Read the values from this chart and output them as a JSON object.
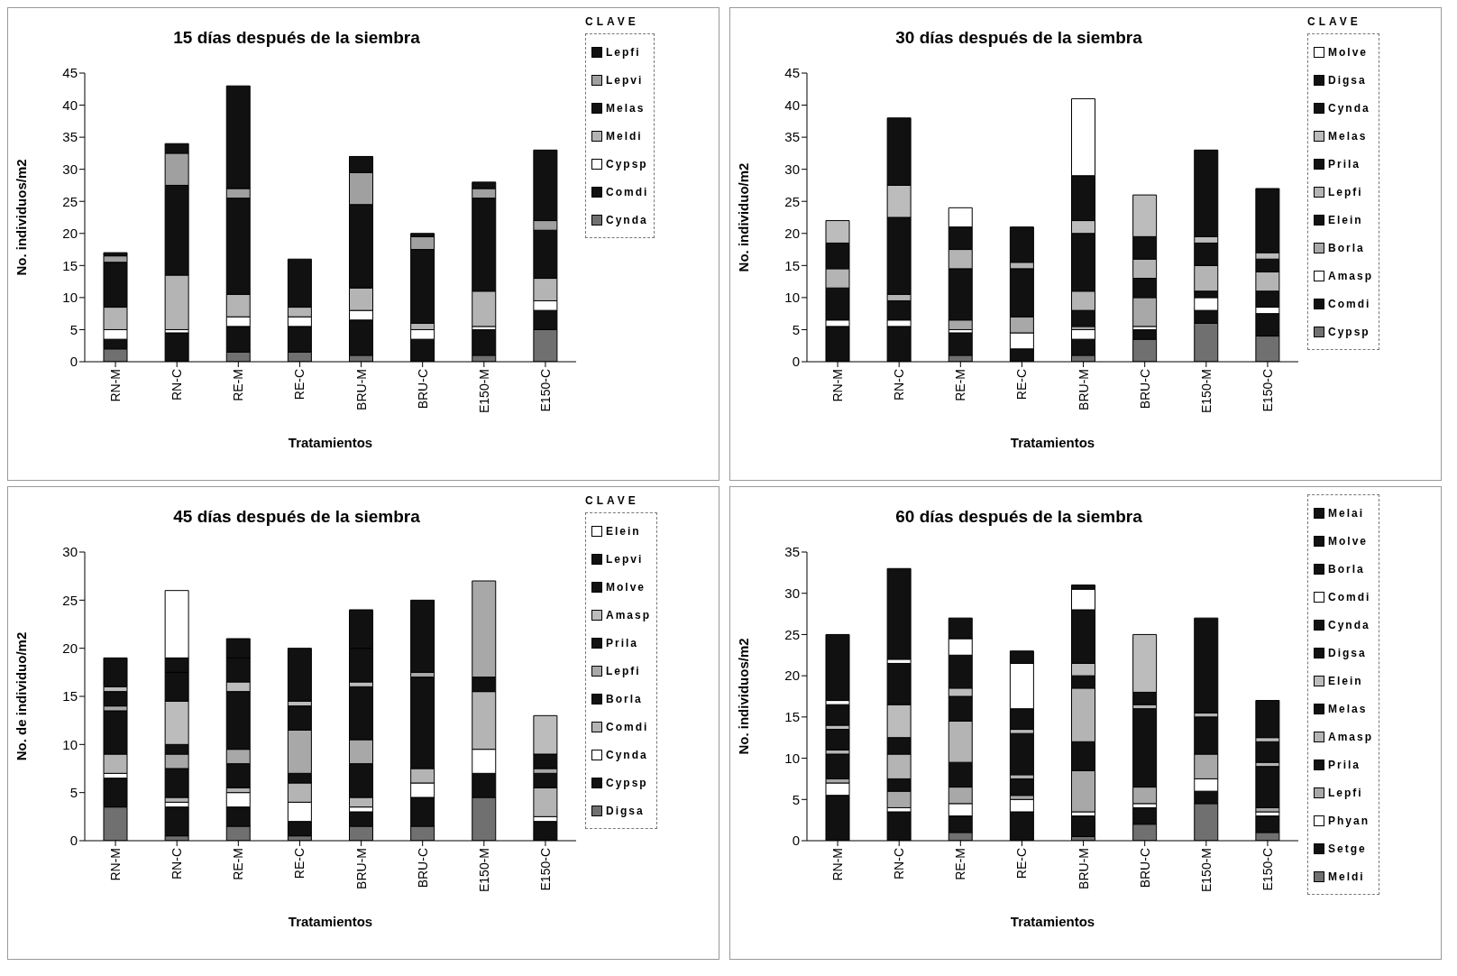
{
  "chart_data": [
    {
      "type": "bar",
      "title": "15 días después de la siembra",
      "xlabel": "Tratamientos",
      "ylabel": "No. individuos/m2",
      "legend_title": "CLAVE",
      "legend": "right",
      "stacked": true,
      "categories": [
        "RN-M",
        "RN-C",
        "RE-M",
        "RE-C",
        "BRU-M",
        "BRU-C",
        "E150-M",
        "E150-C"
      ],
      "ylim": [
        0,
        45
      ],
      "yticks": [
        0,
        5,
        10,
        15,
        20,
        25,
        30,
        35,
        40,
        45
      ],
      "series": [
        {
          "name": "Cynda",
          "color": "#707070",
          "values": [
            2,
            0,
            1.5,
            1.5,
            1,
            0,
            1,
            5
          ]
        },
        {
          "name": "Comdi",
          "color": "#111111",
          "values": [
            1.5,
            4.5,
            4,
            4,
            5.5,
            3.5,
            4,
            3
          ]
        },
        {
          "name": "Cypsp",
          "color": "#ffffff",
          "values": [
            1.5,
            0.5,
            1.5,
            1.5,
            1.5,
            1.5,
            0.5,
            1.5
          ]
        },
        {
          "name": "Meldi",
          "color": "#b4b4b4",
          "values": [
            3.5,
            8.5,
            3.5,
            1.5,
            3.5,
            1,
            5.5,
            3.5
          ]
        },
        {
          "name": "Melas",
          "color": "#111111",
          "values": [
            7,
            14,
            15,
            7.5,
            13,
            11.5,
            14.5,
            7.5
          ]
        },
        {
          "name": "Lepvi",
          "color": "#a0a0a0",
          "values": [
            1,
            5,
            1.5,
            0,
            5,
            2,
            1.5,
            1.5
          ]
        },
        {
          "name": "Lepfi",
          "color": "#111111",
          "values": [
            0.5,
            1.5,
            16,
            0,
            2.5,
            0.5,
            1,
            11
          ]
        }
      ]
    },
    {
      "type": "bar",
      "title": "30 días después de la siembra",
      "xlabel": "Tratamientos",
      "ylabel": "No. individuo/m2",
      "legend_title": "CLAVE",
      "legend": "right",
      "stacked": true,
      "categories": [
        "RN-M",
        "RN-C",
        "RE-M",
        "RE-C",
        "BRU-M",
        "BRU-C",
        "E150-M",
        "E150-C"
      ],
      "ylim": [
        0,
        45
      ],
      "yticks": [
        0,
        5,
        10,
        15,
        20,
        25,
        30,
        35,
        40,
        45
      ],
      "series": [
        {
          "name": "Cypsp",
          "color": "#707070",
          "values": [
            0,
            0,
            1,
            0,
            1,
            3.5,
            6,
            4
          ]
        },
        {
          "name": "Comdi",
          "color": "#111111",
          "values": [
            5.5,
            5.5,
            3.5,
            2,
            2.5,
            1.5,
            2,
            3.5
          ]
        },
        {
          "name": "Amasp",
          "color": "#ffffff",
          "values": [
            1,
            1,
            0.5,
            2.5,
            1.5,
            0.5,
            2,
            1
          ]
        },
        {
          "name": "Borla",
          "color": "#a8a8a8",
          "values": [
            0,
            0,
            1.5,
            2.5,
            0.5,
            4.5,
            0,
            0
          ]
        },
        {
          "name": "Elein",
          "color": "#111111",
          "values": [
            5,
            3,
            8,
            7.5,
            2.5,
            3,
            1,
            2.5
          ]
        },
        {
          "name": "Lepfi",
          "color": "#b4b4b4",
          "values": [
            3,
            1,
            3,
            1,
            3,
            3,
            4,
            3
          ]
        },
        {
          "name": "Prila",
          "color": "#111111",
          "values": [
            4,
            12,
            3.5,
            5.5,
            9,
            3.5,
            3.5,
            2
          ]
        },
        {
          "name": "Melas",
          "color": "#bcbcbc",
          "values": [
            3.5,
            5,
            0,
            0,
            2,
            6.5,
            1,
            1
          ]
        },
        {
          "name": "Cynda",
          "color": "#111111",
          "values": [
            0,
            10.5,
            0,
            0,
            7,
            0,
            13.5,
            10
          ]
        },
        {
          "name": "Digsa",
          "color": "#111111",
          "values": [
            0,
            0,
            0,
            0,
            0,
            0,
            0,
            0
          ]
        },
        {
          "name": "Molve",
          "color": "#ffffff",
          "values": [
            0,
            0,
            3,
            0,
            12,
            0,
            0,
            0
          ]
        }
      ]
    },
    {
      "type": "bar",
      "title": "45 días después de la siembra",
      "xlabel": "Tratamientos",
      "ylabel": "No. de individuo/m2",
      "legend_title": "CLAVE",
      "legend": "right",
      "stacked": true,
      "categories": [
        "RN-M",
        "RN-C",
        "RE-M",
        "RE-C",
        "BRU-M",
        "BRU-C",
        "E150-M",
        "E150-C"
      ],
      "ylim": [
        0,
        30
      ],
      "yticks": [
        0,
        5,
        10,
        15,
        20,
        25,
        30
      ],
      "series": [
        {
          "name": "Digsa",
          "color": "#707070",
          "values": [
            3.5,
            0.5,
            1.5,
            0.5,
            1.5,
            1.5,
            4.5,
            0
          ]
        },
        {
          "name": "Cypsp",
          "color": "#111111",
          "values": [
            3,
            3,
            2,
            1.5,
            1.5,
            3,
            2.5,
            2
          ]
        },
        {
          "name": "Cynda",
          "color": "#ffffff",
          "values": [
            0.5,
            0.5,
            1.5,
            2,
            0.5,
            1.5,
            2.5,
            0.5
          ]
        },
        {
          "name": "Comdi",
          "color": "#b4b4b4",
          "values": [
            2,
            0.5,
            0.5,
            2,
            1,
            1.5,
            6,
            3
          ]
        },
        {
          "name": "Borla",
          "color": "#111111",
          "values": [
            4.5,
            3,
            2.5,
            1,
            3.5,
            9.5,
            1.5,
            1.5
          ]
        },
        {
          "name": "Lepfi",
          "color": "#a8a8a8",
          "values": [
            0.5,
            1.5,
            1.5,
            4.5,
            2.5,
            0.5,
            10,
            0.5
          ]
        },
        {
          "name": "Prila",
          "color": "#111111",
          "values": [
            1.5,
            1,
            6,
            2.5,
            5.5,
            7.5,
            0,
            1.5
          ]
        },
        {
          "name": "Amasp",
          "color": "#bcbcbc",
          "values": [
            0.5,
            4.5,
            1,
            0.5,
            0.5,
            0,
            0,
            4
          ]
        },
        {
          "name": "Molve",
          "color": "#111111",
          "values": [
            3,
            3,
            2.5,
            5.5,
            3.5,
            0,
            0,
            0
          ]
        },
        {
          "name": "Lepvi",
          "color": "#111111",
          "values": [
            0,
            1.5,
            2,
            0,
            4,
            0,
            0,
            0
          ]
        },
        {
          "name": "Elein",
          "color": "#ffffff",
          "values": [
            0,
            7,
            0,
            0,
            0,
            0,
            0,
            0
          ]
        }
      ]
    },
    {
      "type": "bar",
      "title": "60 días después de la siembra",
      "xlabel": "Tratamientos",
      "ylabel": "No. individuos/m2",
      "legend": "right",
      "stacked": true,
      "categories": [
        "RN-M",
        "RN-C",
        "RE-M",
        "RE-C",
        "BRU-M",
        "BRU-C",
        "E150-M",
        "E150-C"
      ],
      "ylim": [
        0,
        35
      ],
      "yticks": [
        0,
        5,
        10,
        15,
        20,
        25,
        30,
        35
      ],
      "series": [
        {
          "name": "Meldi",
          "color": "#707070",
          "values": [
            0,
            0,
            1,
            0,
            0.5,
            2,
            4.5,
            1
          ]
        },
        {
          "name": "Setge",
          "color": "#111111",
          "values": [
            5.5,
            3.5,
            2,
            3.5,
            2.5,
            2,
            1.5,
            2
          ]
        },
        {
          "name": "Phyan",
          "color": "#ffffff",
          "values": [
            1.5,
            0.5,
            1.5,
            1.5,
            0.5,
            0.5,
            1.5,
            0.5
          ]
        },
        {
          "name": "Lepfi",
          "color": "#a8a8a8",
          "values": [
            0.5,
            2,
            2,
            0.5,
            5,
            2,
            3,
            0.5
          ]
        },
        {
          "name": "Prila",
          "color": "#111111",
          "values": [
            3,
            1.5,
            3,
            2,
            3.5,
            9.5,
            4.5,
            5
          ]
        },
        {
          "name": "Amasp",
          "color": "#b4b4b4",
          "values": [
            0.5,
            3,
            5,
            0.5,
            6.5,
            0.5,
            0.5,
            0.5
          ]
        },
        {
          "name": "Melas",
          "color": "#111111",
          "values": [
            2.5,
            2,
            3,
            5,
            1.5,
            1.5,
            11.5,
            2.5
          ]
        },
        {
          "name": "Elein",
          "color": "#bcbcbc",
          "values": [
            0.5,
            4,
            1,
            0.5,
            1.5,
            7,
            0,
            0.5
          ]
        },
        {
          "name": "Digsa",
          "color": "#111111",
          "values": [
            2.5,
            5,
            4,
            2.5,
            6.5,
            0,
            0,
            4.5
          ]
        },
        {
          "name": "Cynda",
          "color": "#111111",
          "values": [
            0,
            0,
            0,
            0,
            0,
            0,
            0,
            0
          ]
        },
        {
          "name": "Comdi",
          "color": "#ffffff",
          "values": [
            0.5,
            0.5,
            2,
            5.5,
            2.5,
            0,
            0,
            0
          ]
        },
        {
          "name": "Borla",
          "color": "#111111",
          "values": [
            8,
            11,
            2.5,
            1.5,
            0.5,
            0,
            0,
            0
          ]
        },
        {
          "name": "Molve",
          "color": "#111111",
          "values": [
            0,
            0,
            0,
            0,
            0,
            0,
            0,
            0
          ]
        },
        {
          "name": "Melai",
          "color": "#111111",
          "values": [
            0,
            0,
            0,
            0,
            0,
            0,
            0,
            0
          ]
        }
      ]
    }
  ]
}
